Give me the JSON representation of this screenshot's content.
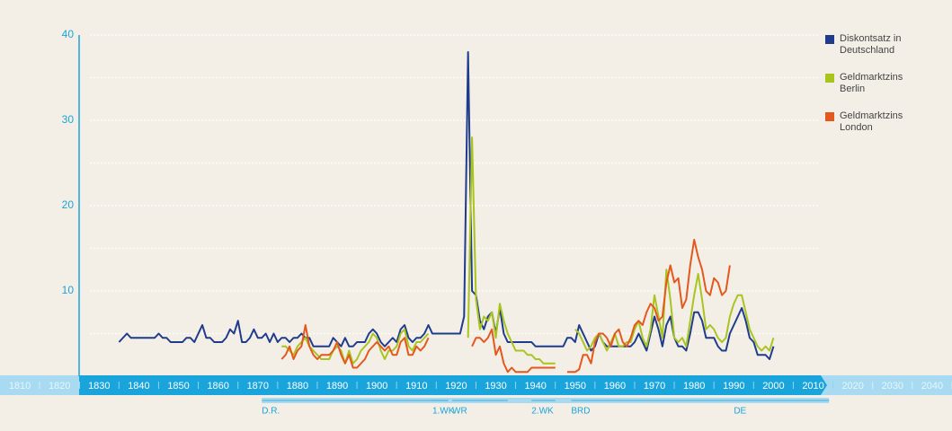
{
  "chart_data": {
    "type": "line",
    "x": [
      1835,
      1836,
      1837,
      1838,
      1839,
      1840,
      1841,
      1842,
      1843,
      1844,
      1845,
      1846,
      1847,
      1848,
      1849,
      1850,
      1851,
      1852,
      1853,
      1854,
      1855,
      1856,
      1857,
      1858,
      1859,
      1860,
      1861,
      1862,
      1863,
      1864,
      1865,
      1866,
      1867,
      1868,
      1869,
      1870,
      1871,
      1872,
      1873,
      1874,
      1875,
      1876,
      1877,
      1878,
      1879,
      1880,
      1881,
      1882,
      1883,
      1884,
      1885,
      1886,
      1887,
      1888,
      1889,
      1890,
      1891,
      1892,
      1893,
      1894,
      1895,
      1896,
      1897,
      1898,
      1899,
      1900,
      1901,
      1902,
      1903,
      1904,
      1905,
      1906,
      1907,
      1908,
      1909,
      1910,
      1911,
      1912,
      1913,
      1914,
      1915,
      1916,
      1917,
      1918,
      1919,
      1920,
      1921,
      1922,
      1923,
      1924,
      1925,
      1926,
      1927,
      1928,
      1929,
      1930,
      1931,
      1932,
      1933,
      1934,
      1935,
      1936,
      1937,
      1938,
      1939,
      1940,
      1941,
      1942,
      1943,
      1944,
      1945,
      1946,
      1947,
      1948,
      1949,
      1950,
      1951,
      1952,
      1953,
      1954,
      1955,
      1956,
      1957,
      1958,
      1959,
      1960,
      1961,
      1962,
      1963,
      1964,
      1965,
      1966,
      1967,
      1968,
      1969,
      1970,
      1971,
      1972,
      1973,
      1974,
      1975,
      1976,
      1977,
      1978,
      1979,
      1980,
      1981,
      1982,
      1983,
      1984,
      1985,
      1986,
      1987,
      1988,
      1989,
      1990,
      1991,
      1992,
      1993,
      1994,
      1995,
      1996,
      1997,
      1998,
      1999,
      2000
    ],
    "series": [
      {
        "name": "Diskontsatz in Deutschland",
        "color": "#1f3b8c",
        "values": [
          4.0,
          4.5,
          5.0,
          4.5,
          4.5,
          4.5,
          4.5,
          4.5,
          4.5,
          4.5,
          5.0,
          4.5,
          4.5,
          4.0,
          4.0,
          4.0,
          4.0,
          4.5,
          4.5,
          4.0,
          5.0,
          6.0,
          4.5,
          4.5,
          4.0,
          4.0,
          4.0,
          4.5,
          5.5,
          5.0,
          6.5,
          4.0,
          4.0,
          4.5,
          5.5,
          4.5,
          4.5,
          5.0,
          4.0,
          5.0,
          4.0,
          4.5,
          4.5,
          4.0,
          4.5,
          4.5,
          5.0,
          4.5,
          4.5,
          3.5,
          3.5,
          3.5,
          3.5,
          3.5,
          4.5,
          4.0,
          3.5,
          4.5,
          3.5,
          3.5,
          4.0,
          4.0,
          4.0,
          5.0,
          5.5,
          5.0,
          4.0,
          3.5,
          4.0,
          4.5,
          4.0,
          5.5,
          6.0,
          4.5,
          4.0,
          4.5,
          4.5,
          5.0,
          6.0,
          5.0,
          5.0,
          5.0,
          5.0,
          5.0,
          5.0,
          5.0,
          5.0,
          7.0,
          38,
          10,
          9.5,
          6.5,
          5.5,
          7.0,
          7.5,
          5.0,
          8.0,
          5.0,
          4.0,
          4.0,
          4.0,
          4.0,
          4.0,
          4.0,
          4.0,
          3.5,
          3.5,
          3.5,
          3.5,
          3.5,
          3.5,
          3.5,
          3.5,
          4.5,
          4.5,
          4.0,
          6.0,
          5.0,
          4.0,
          3.0,
          3.5,
          5.0,
          4.0,
          3.5,
          3.5,
          3.5,
          3.5,
          3.5,
          3.5,
          3.5,
          4.0,
          5.0,
          4.0,
          3.0,
          5.0,
          7.0,
          5.5,
          3.5,
          6.0,
          7.0,
          4.5,
          3.5,
          3.5,
          3.0,
          5.0,
          7.5,
          7.5,
          6.5,
          4.5,
          4.5,
          4.5,
          3.5,
          3.0,
          3.0,
          5.0,
          6.0,
          7.0,
          8.0,
          6.5,
          4.5,
          4.0,
          2.5,
          2.5,
          2.5,
          2.0,
          3.5
        ]
      },
      {
        "name": "Geldmarktzins Berlin",
        "color": "#a9c41f",
        "values": [
          null,
          null,
          null,
          null,
          null,
          null,
          null,
          null,
          null,
          null,
          null,
          null,
          null,
          null,
          null,
          null,
          null,
          null,
          null,
          null,
          null,
          null,
          null,
          null,
          null,
          null,
          null,
          null,
          null,
          null,
          null,
          null,
          null,
          null,
          null,
          null,
          null,
          null,
          null,
          null,
          null,
          3.5,
          3.5,
          3.0,
          2.5,
          3.5,
          4.0,
          4.5,
          3.5,
          3.0,
          2.5,
          2.0,
          2.0,
          2.0,
          3.0,
          3.5,
          3.0,
          1.5,
          3.0,
          1.5,
          2.0,
          3.0,
          3.5,
          4.0,
          5.0,
          4.5,
          3.0,
          2.0,
          3.0,
          3.0,
          3.5,
          5.0,
          5.5,
          3.5,
          3.0,
          4.0,
          4.0,
          4.5,
          5.0,
          null,
          null,
          null,
          null,
          null,
          null,
          null,
          null,
          null,
          4.5,
          28,
          9.0,
          5.5,
          7.0,
          6.5,
          7.5,
          4.5,
          8.5,
          6.5,
          5.0,
          4.0,
          3.0,
          3.0,
          3.0,
          2.5,
          2.5,
          2.0,
          2.0,
          1.5,
          1.5,
          1.5,
          1.5,
          null,
          null,
          null,
          null,
          5.5,
          5.0,
          4.0,
          3.0,
          3.5,
          4.5,
          5.0,
          4.0,
          3.0,
          4.0,
          5.0,
          3.5,
          3.5,
          4.0,
          4.0,
          5.5,
          6.5,
          4.5,
          3.5,
          5.5,
          9.5,
          7.0,
          4.5,
          12.5,
          9.0,
          4.5,
          4.0,
          4.5,
          3.5,
          6.5,
          9.5,
          12,
          9.0,
          5.5,
          6.0,
          5.5,
          4.5,
          4.0,
          4.5,
          7.0,
          8.5,
          9.5,
          9.5,
          7.5,
          5.5,
          4.5,
          3.5,
          3.0,
          3.5,
          3.0,
          4.5
        ]
      },
      {
        "name": "Geldmarktzins London",
        "color": "#e4571d",
        "values": [
          null,
          null,
          null,
          null,
          null,
          null,
          null,
          null,
          null,
          null,
          null,
          null,
          null,
          null,
          null,
          null,
          null,
          null,
          null,
          null,
          null,
          null,
          null,
          null,
          null,
          null,
          null,
          null,
          null,
          null,
          null,
          null,
          null,
          null,
          null,
          null,
          null,
          null,
          null,
          null,
          null,
          2.0,
          2.5,
          3.5,
          2.0,
          3.0,
          3.5,
          6.0,
          3.5,
          2.5,
          2.0,
          2.5,
          2.5,
          2.5,
          3.0,
          4.0,
          2.5,
          1.5,
          2.5,
          1.0,
          1.0,
          1.5,
          2.0,
          3.0,
          3.5,
          4.0,
          3.5,
          3.0,
          3.5,
          2.5,
          2.5,
          4.0,
          4.5,
          2.5,
          2.5,
          3.5,
          3.0,
          3.5,
          4.5,
          null,
          null,
          null,
          null,
          null,
          null,
          null,
          null,
          null,
          null,
          3.5,
          4.5,
          4.5,
          4.0,
          4.5,
          5.5,
          2.5,
          3.5,
          1.5,
          0.5,
          1.0,
          0.5,
          0.5,
          0.5,
          0.5,
          1.0,
          1.0,
          1.0,
          1.0,
          1.0,
          1.0,
          1.0,
          null,
          null,
          0.5,
          0.5,
          0.5,
          0.8,
          2.5,
          2.5,
          1.5,
          4.0,
          5.0,
          5.0,
          4.5,
          3.5,
          5.0,
          5.5,
          4.0,
          3.5,
          4.5,
          6.0,
          6.5,
          6.0,
          7.5,
          8.5,
          8.0,
          6.5,
          7.0,
          11,
          13,
          11,
          11.5,
          8.0,
          9.0,
          13,
          16,
          14,
          12.5,
          10,
          9.5,
          11.5,
          11,
          9.5,
          10,
          13,
          null,
          null,
          null,
          null,
          null,
          null,
          null,
          null,
          null,
          null,
          null
        ]
      }
    ],
    "xlim": [
      1805,
      2045
    ],
    "xticks": [
      1810,
      1820,
      1830,
      1840,
      1850,
      1860,
      1870,
      1880,
      1890,
      1900,
      1910,
      1920,
      1930,
      1940,
      1950,
      1960,
      1970,
      1980,
      1990,
      2000,
      2010,
      2020,
      2030,
      2040
    ],
    "ylim": [
      0,
      40
    ],
    "yticks": [
      10,
      20,
      30,
      40
    ],
    "minor_grid": [
      5,
      15,
      25,
      35
    ],
    "grid": true,
    "legend": "top-right",
    "periods": [
      {
        "label": "D.R.",
        "start": 1871,
        "end": 1918
      },
      {
        "label": "1.WK",
        "start": 1914,
        "end": 1918
      },
      {
        "label": "WR",
        "start": 1919,
        "end": 1933
      },
      {
        "label": "2.WK",
        "start": 1939,
        "end": 1945
      },
      {
        "label": "BRD",
        "start": 1949,
        "end": 1990
      },
      {
        "label": "DE",
        "start": 1990,
        "end": 2014
      }
    ]
  }
}
